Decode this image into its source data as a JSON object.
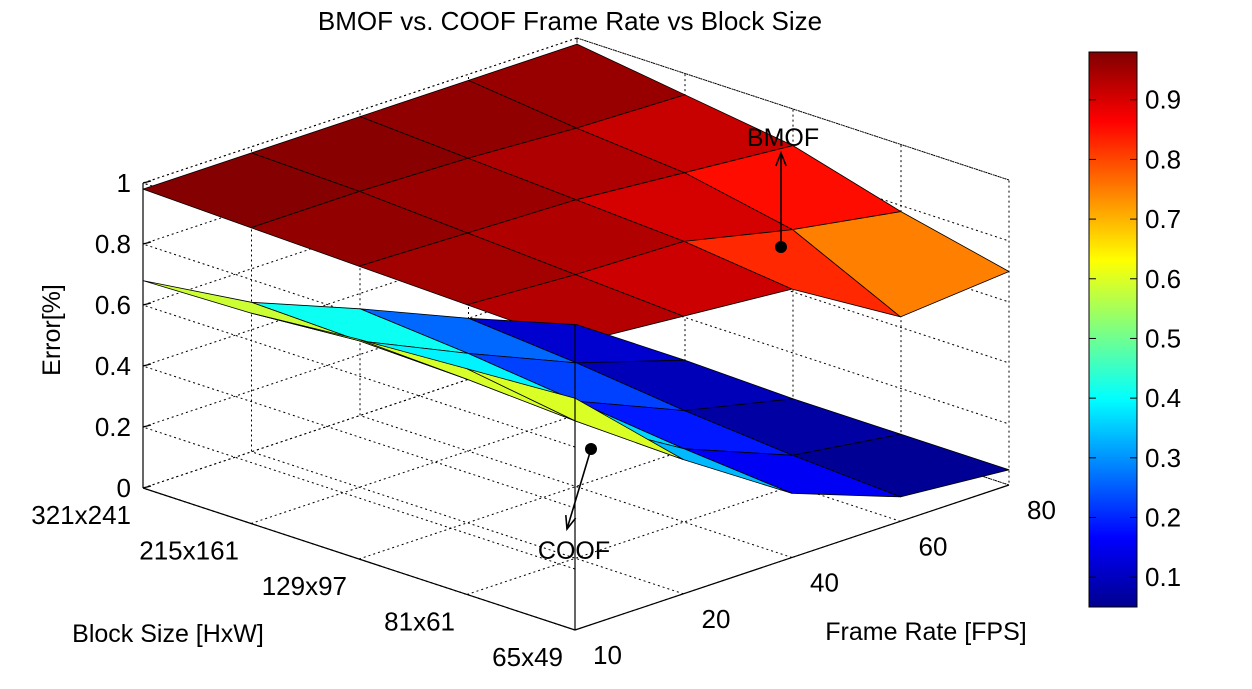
{
  "chart_data": {
    "type": "surface",
    "title": "BMOF vs. COOF Frame Rate vs Block Size",
    "xlabel": "Block Size [HxW]",
    "ylabel": "Frame Rate [FPS]",
    "zlabel": "Error[%]",
    "block_sizes": [
      "321x241",
      "215x161",
      "129x97",
      "81x61",
      "65x49"
    ],
    "frame_rates": [
      "10",
      "20",
      "40",
      "60",
      "80"
    ],
    "z_ticks": [
      "0",
      "0.2",
      "0.4",
      "0.6",
      "0.8",
      "1"
    ],
    "zlim": [
      0,
      1
    ],
    "colorbar": {
      "colormap": "jet",
      "range": [
        0.05,
        0.98
      ],
      "ticks": [
        "0.1",
        "0.2",
        "0.3",
        "0.4",
        "0.5",
        "0.6",
        "0.7",
        "0.8",
        "0.9"
      ]
    },
    "grid": true,
    "series": [
      {
        "name": "BMOF",
        "values": [
          [
            0.98,
            0.98,
            0.98,
            0.98,
            0.98
          ],
          [
            0.97,
            0.97,
            0.96,
            0.94,
            0.93
          ],
          [
            0.96,
            0.95,
            0.94,
            0.91,
            0.88
          ],
          [
            0.95,
            0.93,
            0.92,
            0.84,
            0.78
          ],
          [
            0.94,
            0.91,
            0.88,
            0.67,
            0.7
          ]
        ]
      },
      {
        "name": "COOF",
        "values": [
          [
            0.68,
            0.49,
            0.35,
            0.2,
            0.06
          ],
          [
            0.69,
            0.48,
            0.32,
            0.17,
            0.06
          ],
          [
            0.72,
            0.47,
            0.28,
            0.13,
            0.05
          ],
          [
            0.74,
            0.45,
            0.24,
            0.1,
            0.05
          ],
          [
            0.76,
            0.44,
            0.21,
            0.08,
            0.05
          ]
        ]
      }
    ]
  }
}
